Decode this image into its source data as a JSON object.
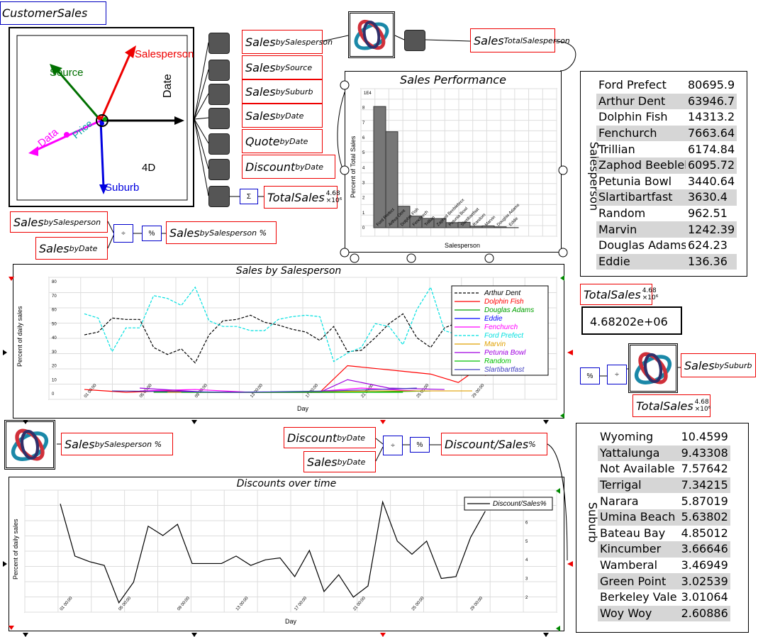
{
  "canvas_title": "CustomerSales",
  "plot4d": {
    "axes": {
      "salesperson": "Salesperson",
      "source": "Source",
      "date": "Date",
      "data": "Data",
      "price": "Price",
      "suburb": "Suburb"
    },
    "dims_label": "4D"
  },
  "vars": {
    "sales_by_salesperson": {
      "base": "Sales",
      "sub": "by",
      "sup": "Salesperson"
    },
    "sales_by_source": {
      "base": "Sales",
      "sub": "by",
      "sup": "Source"
    },
    "sales_by_suburb": {
      "base": "Sales",
      "sub": "by",
      "sup": "Suburb"
    },
    "sales_by_date": {
      "base": "Sales",
      "sub": "by",
      "sup": "Date"
    },
    "quote_by_date": {
      "base": "Quote",
      "sub": "by",
      "sup": "Date"
    },
    "discount_by_date": {
      "base": "Discount",
      "sub": "by",
      "sup": "Date"
    },
    "total_sales": {
      "base": "TotalSales",
      "exp": "4.68",
      "unit": "×10⁶"
    },
    "sales_total_salesperson": {
      "base": "Sales",
      "sup": "Total",
      "sub": "Salesperson"
    },
    "left_sales_by_salesperson": {
      "base": "Sales",
      "sub": "by",
      "sup": "Salesperson"
    },
    "left_sales_by_date": {
      "base": "Sales",
      "sub": "by",
      "sup": "Date"
    },
    "sales_pct": {
      "base": "Sales",
      "sub": "by",
      "sup": "Salesperson %"
    },
    "sales_pct_bottom": {
      "base": "Sales",
      "sub": "by",
      "sup": "Salesperson %"
    },
    "total_sales_right": {
      "base": "TotalSales",
      "exp": "4.68",
      "unit": "×10⁶"
    },
    "total_sales_right2": {
      "base": "TotalSales",
      "exp": "4.68",
      "unit": "×10⁶"
    },
    "sales_by_suburb_right": {
      "base": "Sales",
      "sub": "by",
      "sup": "Suburb"
    },
    "discount_by_date2": {
      "base": "Discount",
      "sub": "by",
      "sup": "Date"
    },
    "sales_by_date2": {
      "base": "Sales",
      "sub": "by",
      "sup": "Date"
    },
    "discount_sales": {
      "base": "Discount/Sales",
      "sup": "%"
    }
  },
  "ops": {
    "percent": "%",
    "sum": "Σ"
  },
  "total_value": "4.68202e+06",
  "salesperson_table": {
    "header": "Salesperson",
    "rows": [
      [
        "Ford Prefect",
        "80695.9"
      ],
      [
        "Arthur Dent",
        "63946.7"
      ],
      [
        "Dolphin Fish",
        "14313.2"
      ],
      [
        "Fenchurch",
        "7663.64"
      ],
      [
        "Trillian",
        "6174.84"
      ],
      [
        "Zaphod Beeblebr",
        "6095.72"
      ],
      [
        "Petunia Bowl",
        "3440.64"
      ],
      [
        "Slartibartfast",
        "3630.4"
      ],
      [
        "Random",
        "962.51"
      ],
      [
        "Marvin",
        "1242.39"
      ],
      [
        "Douglas Adams",
        "624.23"
      ],
      [
        "Eddie",
        "136.36"
      ]
    ]
  },
  "suburb_table": {
    "header": "Suburb",
    "rows": [
      [
        "Wyoming",
        "10.4599"
      ],
      [
        "Yattalunga",
        "9.43308"
      ],
      [
        "Not Available",
        "7.57642"
      ],
      [
        "Terrigal",
        "7.34215"
      ],
      [
        "Narara",
        "5.87019"
      ],
      [
        "Umina Beach",
        "5.63802"
      ],
      [
        "Bateau Bay",
        "4.85012"
      ],
      [
        "Kincumber",
        "3.66646"
      ],
      [
        "Wamberal",
        "3.46949"
      ],
      [
        "Green Point",
        "3.02539"
      ],
      [
        "Berkeley Vale",
        "3.01064"
      ],
      [
        "Woy Woy",
        "2.60886"
      ]
    ]
  },
  "chart_data": [
    {
      "type": "bar",
      "title": "Sales Performance",
      "xlabel": "Salesperson",
      "ylabel": "Percent of Total Sales",
      "scale_label": "1E4",
      "categories": [
        "Ford Prefect",
        "Arthur Dent",
        "Dolphin Fish",
        "Fenchurch",
        "Trillian",
        "Zaphod Beeblebrox",
        "Petunia Bowl",
        "Slartibartfast",
        "Random",
        "Marvin",
        "Douglas Adams",
        "Eddie"
      ],
      "values": [
        8.07,
        6.39,
        1.43,
        0.77,
        0.62,
        0.61,
        0.34,
        0.36,
        0.1,
        0.12,
        0.06,
        0.01
      ],
      "ylim": [
        0,
        8.5
      ],
      "yticks": [
        0,
        1,
        2,
        3,
        4,
        5,
        6,
        7,
        8
      ]
    },
    {
      "type": "line",
      "title": "Sales by Salesperson",
      "xlabel": "Day",
      "ylabel": "Percent of daily sales",
      "ylim": [
        0,
        80
      ],
      "yticks": [
        0,
        10,
        20,
        30,
        40,
        50,
        60,
        70,
        80
      ],
      "xticks": [
        "01 00:00",
        "05 00:00",
        "09 00:00",
        "13 00:00",
        "17 00:00",
        "21 00:00",
        "25 00:00",
        "29 00:00"
      ],
      "xrange": [
        0,
        30
      ],
      "series": [
        {
          "name": "Arthur Dent",
          "color": "#000000",
          "dash": true,
          "x": [
            0,
            1,
            2,
            3,
            4,
            5,
            6,
            7,
            8,
            9,
            10,
            11,
            12,
            13,
            14,
            15,
            16,
            17,
            18,
            19,
            20,
            21,
            22,
            23,
            24,
            25,
            26,
            27,
            28,
            29
          ],
          "values": [
            42,
            44,
            54,
            53,
            53,
            33,
            28,
            32,
            22,
            42,
            52,
            53,
            56,
            51,
            49,
            46,
            44,
            38,
            48,
            30,
            31,
            40,
            50,
            57,
            40,
            33,
            47,
            51,
            36,
            42
          ]
        },
        {
          "name": "Dolphin Fish",
          "color": "#ff0000",
          "dash": false,
          "x": [
            0,
            3,
            6,
            9,
            12,
            15,
            17,
            19,
            21,
            23,
            25,
            27,
            28,
            29
          ],
          "values": [
            3,
            1,
            2,
            1,
            1,
            1,
            1,
            20,
            18,
            16,
            14,
            8,
            15,
            13
          ]
        },
        {
          "name": "Douglas Adams",
          "color": "#00a000",
          "dash": false,
          "x": [
            5,
            10,
            15,
            20,
            25
          ],
          "values": [
            1,
            1,
            1,
            1,
            2
          ]
        },
        {
          "name": "Eddie",
          "color": "#0000ff",
          "dash": false,
          "x": [
            8,
            18
          ],
          "values": [
            1,
            1
          ]
        },
        {
          "name": "Fenchurch",
          "color": "#ff00ff",
          "dash": false,
          "x": [
            4,
            8,
            12,
            16,
            20,
            24
          ],
          "values": [
            2,
            3,
            1,
            1,
            4,
            2
          ]
        },
        {
          "name": "Ford Prefect",
          "color": "#00e0e0",
          "dash": true,
          "x": [
            0,
            1,
            2,
            3,
            4,
            5,
            6,
            7,
            8,
            9,
            10,
            11,
            12,
            13,
            14,
            15,
            16,
            17,
            18,
            19,
            20,
            21,
            22,
            23,
            24,
            25,
            26,
            27,
            28,
            29
          ],
          "values": [
            57,
            54,
            30,
            47,
            47,
            70,
            68,
            63,
            76,
            52,
            48,
            48,
            45,
            45,
            53,
            55,
            56,
            55,
            23,
            29,
            33,
            50,
            48,
            35,
            60,
            76,
            45,
            42,
            46,
            43
          ]
        },
        {
          "name": "Marvin",
          "color": "#e0a000",
          "dash": false,
          "x": [
            6,
            14,
            21,
            28
          ],
          "values": [
            1,
            1,
            2,
            2
          ]
        },
        {
          "name": "Petunia Bowl",
          "color": "#a000e0",
          "dash": false,
          "x": [
            4,
            9,
            17,
            19,
            22,
            26
          ],
          "values": [
            4,
            1,
            1,
            10,
            4,
            3
          ]
        },
        {
          "name": "Random",
          "color": "#00c000",
          "dash": false,
          "x": [
            7,
            16,
            23
          ],
          "values": [
            1,
            1,
            1
          ]
        },
        {
          "name": "Slartibartfast",
          "color": "#4040c0",
          "dash": false,
          "x": [
            2,
            11,
            18,
            24
          ],
          "values": [
            2,
            1,
            2,
            4
          ]
        }
      ]
    },
    {
      "type": "line",
      "title": "Discounts over time",
      "xlabel": "Day",
      "ylabel": "Percent of daily sales",
      "ylim": [
        1.5,
        7.5
      ],
      "yticks": [
        2,
        3,
        4,
        5,
        6
      ],
      "xticks": [
        "01 00:00",
        "05 00:00",
        "09 00:00",
        "13 00:00",
        "17 00:00",
        "21 00:00",
        "25 00:00",
        "29 00:00"
      ],
      "xrange": [
        0,
        30
      ],
      "series": [
        {
          "name": "Discount/Sales%",
          "color": "#000000",
          "dash": false,
          "x": [
            0,
            1,
            2,
            3,
            4,
            5,
            6,
            7,
            8,
            9,
            10,
            11,
            12,
            13,
            14,
            15,
            16,
            17,
            18,
            19,
            20,
            21,
            22,
            23,
            24,
            25,
            26,
            27,
            28,
            29
          ],
          "values": [
            7.0,
            4.2,
            3.9,
            3.7,
            1.7,
            2.8,
            5.8,
            5.3,
            5.9,
            3.8,
            3.8,
            3.8,
            4.2,
            3.7,
            4.0,
            4.1,
            3.1,
            4.5,
            2.3,
            3.2,
            2.0,
            2.6,
            7.1,
            5.0,
            4.3,
            5.0,
            3.0,
            3.1,
            5.2,
            6.6
          ]
        }
      ]
    }
  ]
}
